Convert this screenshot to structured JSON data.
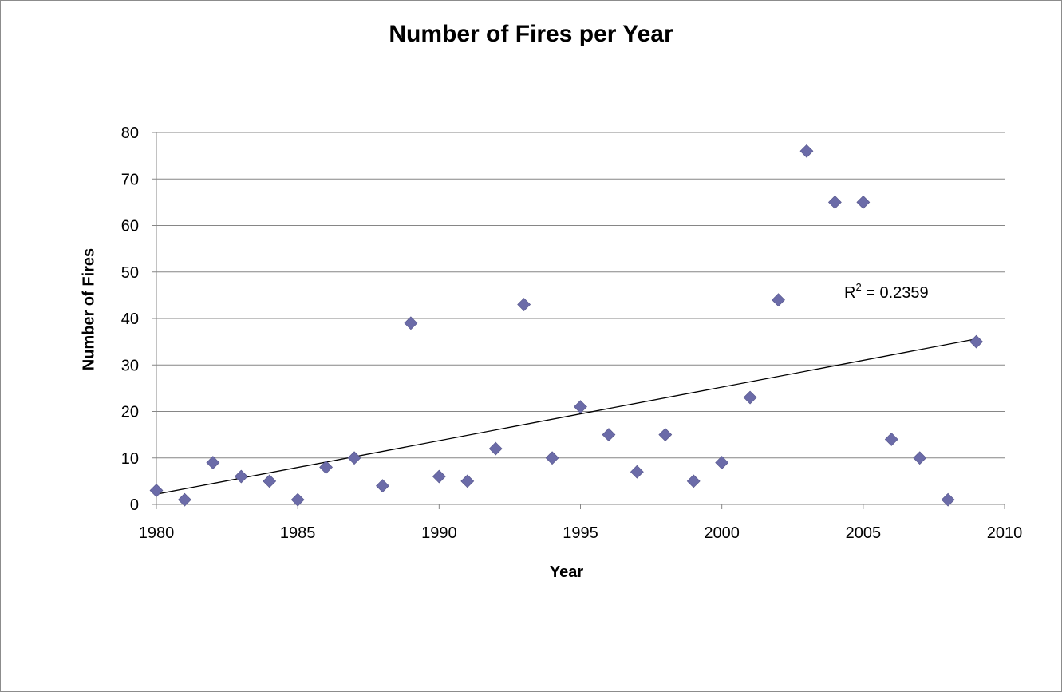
{
  "chart_data": {
    "type": "scatter",
    "title": "Number of Fires per Year",
    "xlabel": "Year",
    "ylabel": "Number of Fires",
    "xlim": [
      1980,
      2010
    ],
    "ylim": [
      0,
      80
    ],
    "x_ticks": [
      1980,
      1985,
      1990,
      1995,
      2000,
      2005,
      2010
    ],
    "y_ticks": [
      0,
      10,
      20,
      30,
      40,
      50,
      60,
      70,
      80
    ],
    "grid": "horizontal",
    "legend": "none",
    "marker_color": "#6b6ba8",
    "marker_shape": "diamond",
    "x": [
      1980,
      1981,
      1982,
      1983,
      1984,
      1985,
      1986,
      1987,
      1988,
      1989,
      1990,
      1991,
      1992,
      1993,
      1994,
      1995,
      1996,
      1997,
      1998,
      1999,
      2000,
      2001,
      2002,
      2003,
      2004,
      2005,
      2006,
      2007,
      2008,
      2009
    ],
    "y": [
      3,
      1,
      9,
      6,
      5,
      1,
      8,
      10,
      4,
      39,
      6,
      5,
      12,
      43,
      10,
      21,
      15,
      7,
      15,
      5,
      9,
      23,
      44,
      76,
      65,
      65,
      14,
      10,
      1,
      35
    ],
    "trendline": {
      "type": "linear",
      "start": [
        1980,
        2.2
      ],
      "end": [
        2009,
        35.6
      ],
      "r_squared_label": "R",
      "r_squared_exponent": "2",
      "r_squared_value": " = 0.2359"
    }
  }
}
